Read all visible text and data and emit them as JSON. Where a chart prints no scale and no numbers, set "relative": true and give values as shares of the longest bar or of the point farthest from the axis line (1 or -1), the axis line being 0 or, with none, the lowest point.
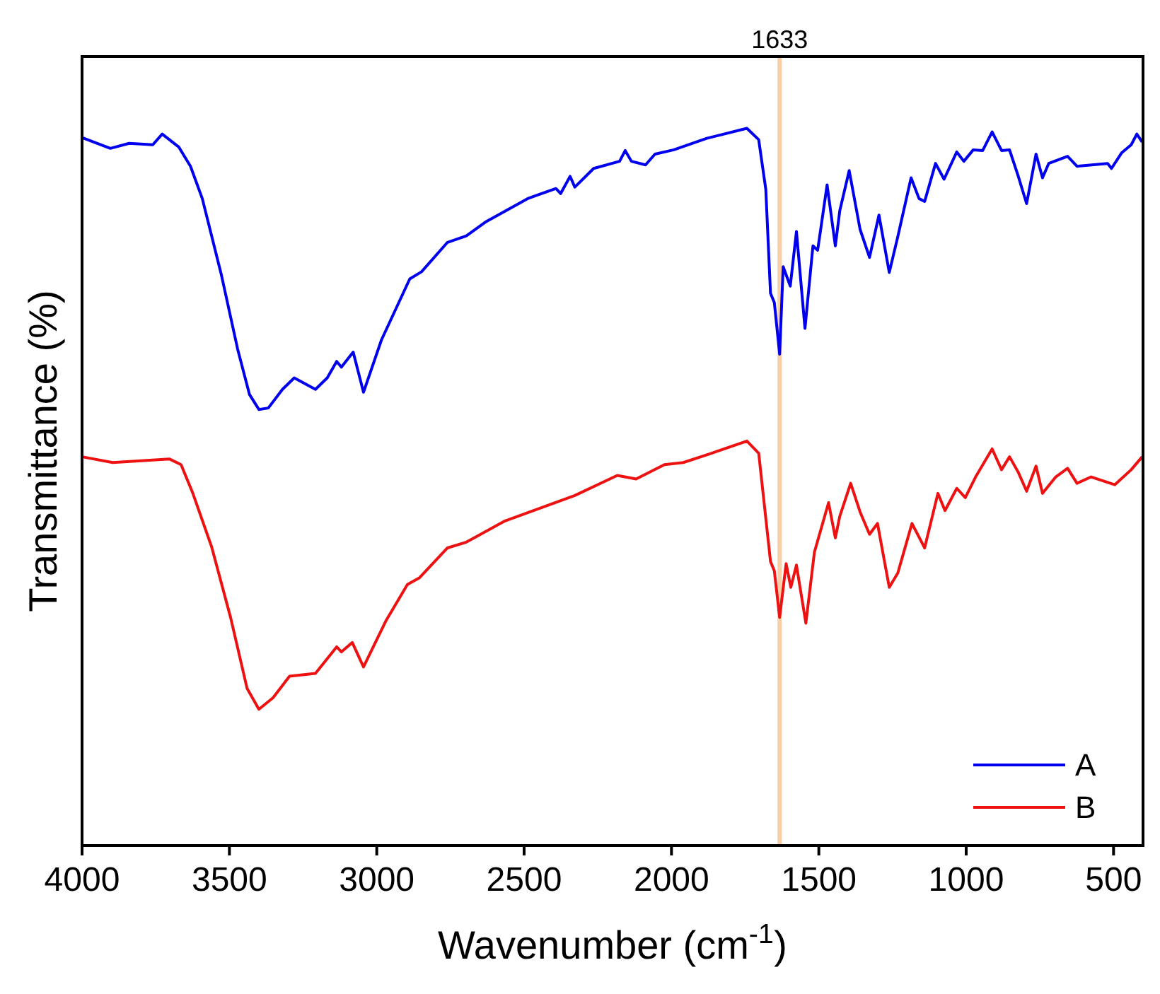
{
  "chart_data": {
    "type": "line",
    "xlabel": "Wavenumber (cm$^{-1}$)",
    "ylabel": "Transmittance (%)",
    "relative": true,
    "xlim": [
      4000,
      400
    ],
    "xticks": [
      4000,
      3500,
      3000,
      2500,
      2000,
      1500,
      1000,
      500
    ],
    "grid": false,
    "legend": "bottom right",
    "marker": "none",
    "line_style": "solid",
    "ref_lines": [
      {
        "axis": "x",
        "value": 1633,
        "label": "1633",
        "color": "#f8cfa6"
      }
    ],
    "series": [
      {
        "name": "A",
        "color": "#0000ee",
        "x": [
          4000,
          3904,
          3840,
          3760,
          3728,
          3672,
          3632,
          3592,
          3528,
          3472,
          3432,
          3400,
          3368,
          3320,
          3280,
          3208,
          3168,
          3136,
          3120,
          3080,
          3045,
          2984,
          2888,
          2848,
          2760,
          2696,
          2632,
          2488,
          2392,
          2376,
          2344,
          2328,
          2264,
          2176,
          2157,
          2136,
          2088,
          2056,
          1992,
          1880,
          1744,
          1704,
          1680,
          1664,
          1651,
          1633,
          1621,
          1597,
          1576,
          1547,
          1520,
          1504,
          1472,
          1444,
          1429,
          1397,
          1360,
          1328,
          1296,
          1261,
          1232,
          1187,
          1160,
          1141,
          1104,
          1075,
          1032,
          1008,
          976,
          944,
          912,
          880,
          853,
          824,
          795,
          763,
          741,
          720,
          656,
          624,
          520,
          507,
          472,
          440,
          421,
          405
        ],
        "values": [
          0.987,
          0.972,
          0.979,
          0.977,
          0.992,
          0.974,
          0.947,
          0.902,
          0.797,
          0.692,
          0.629,
          0.608,
          0.61,
          0.636,
          0.652,
          0.636,
          0.652,
          0.675,
          0.667,
          0.688,
          0.632,
          0.705,
          0.79,
          0.8,
          0.841,
          0.85,
          0.869,
          0.902,
          0.916,
          0.909,
          0.933,
          0.918,
          0.944,
          0.954,
          0.969,
          0.954,
          0.949,
          0.964,
          0.97,
          0.986,
          1.0,
          0.984,
          0.915,
          0.77,
          0.757,
          0.685,
          0.807,
          0.78,
          0.856,
          0.721,
          0.836,
          0.83,
          0.921,
          0.836,
          0.885,
          0.941,
          0.859,
          0.82,
          0.879,
          0.799,
          0.849,
          0.931,
          0.902,
          0.898,
          0.951,
          0.929,
          0.967,
          0.954,
          0.97,
          0.969,
          0.995,
          0.969,
          0.97,
          0.934,
          0.895,
          0.964,
          0.931,
          0.951,
          0.961,
          0.947,
          0.951,
          0.944,
          0.966,
          0.977,
          0.992,
          0.982
        ]
      },
      {
        "name": "B",
        "color": "#ee1111",
        "x": [
          4000,
          3896,
          3704,
          3664,
          3624,
          3560,
          3496,
          3440,
          3400,
          3352,
          3296,
          3208,
          3136,
          3120,
          3083,
          3045,
          2968,
          2896,
          2856,
          2760,
          2696,
          2568,
          2328,
          2184,
          2120,
          2024,
          1960,
          1864,
          1744,
          1704,
          1664,
          1651,
          1633,
          1611,
          1595,
          1576,
          1544,
          1515,
          1467,
          1444,
          1429,
          1392,
          1360,
          1328,
          1301,
          1261,
          1232,
          1184,
          1141,
          1096,
          1072,
          1032,
          1003,
          968,
          912,
          880,
          853,
          824,
          795,
          763,
          741,
          696,
          656,
          624,
          576,
          496,
          440,
          405
        ],
        "values": [
          0.542,
          0.534,
          0.539,
          0.531,
          0.491,
          0.416,
          0.318,
          0.219,
          0.19,
          0.206,
          0.236,
          0.24,
          0.277,
          0.27,
          0.283,
          0.249,
          0.314,
          0.364,
          0.373,
          0.415,
          0.423,
          0.452,
          0.488,
          0.516,
          0.511,
          0.531,
          0.534,
          0.547,
          0.564,
          0.547,
          0.396,
          0.383,
          0.318,
          0.393,
          0.36,
          0.391,
          0.31,
          0.409,
          0.478,
          0.429,
          0.459,
          0.505,
          0.465,
          0.434,
          0.449,
          0.36,
          0.38,
          0.449,
          0.415,
          0.491,
          0.467,
          0.498,
          0.485,
          0.514,
          0.553,
          0.524,
          0.542,
          0.521,
          0.494,
          0.529,
          0.491,
          0.514,
          0.526,
          0.505,
          0.514,
          0.503,
          0.524,
          0.541
        ]
      }
    ]
  }
}
